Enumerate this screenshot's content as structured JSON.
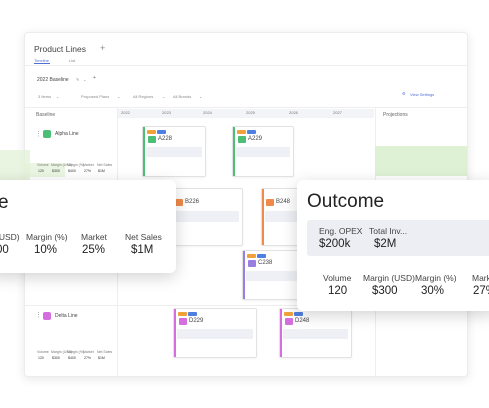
{
  "app": {
    "title": "Product Lines",
    "add_glyph": "+",
    "tabs": [
      "Timeline",
      "List"
    ],
    "scenario": "2022 Baseline",
    "scenario_edit_icon": "pencil-icon",
    "scenario_menu_icon": "chevron-down-icon",
    "scenario_add_glyph": "+"
  },
  "filters": {
    "items_count": "3 Items",
    "plans": "Proposed Plans",
    "regions": "All Regions",
    "brands": "All Brands",
    "view_settings": "View Settings"
  },
  "columns": {
    "baseline": "Baseline",
    "projections": "Projections",
    "years": [
      "2022",
      "2023",
      "2024",
      "2025",
      "2026",
      "2027"
    ]
  },
  "lines": [
    {
      "name": "Alpha Line",
      "color": "#4cbf74",
      "icon": "product-line-icon"
    },
    {
      "name": "Delta Line",
      "color": "#d56fe0",
      "icon": "product-line-icon"
    }
  ],
  "metric_labels": [
    "Volume",
    "Margin (USD)",
    "Margin (%)",
    "Market",
    "Net Sales"
  ],
  "alpha_baseline_values": [
    "120",
    "$300",
    "$400",
    "27%",
    "$1M"
  ],
  "delta_baseline_values": [
    "120",
    "$300",
    "$400",
    "27%",
    "$1M"
  ],
  "cards": {
    "a1": {
      "code": "A228",
      "badge_color": "#f0a13a",
      "icon_color": "#4cbf74"
    },
    "a2": {
      "code": "A229",
      "badge_color": "#f0a13a",
      "icon_color": "#4cbf74"
    },
    "b1": {
      "code": "B226",
      "badge_color": "#f0a13a",
      "icon_color": "#f08a4b"
    },
    "b2": {
      "code": "B248",
      "badge_color": "#f0a13a",
      "icon_color": "#f08a4b"
    },
    "c1": {
      "code": "C238",
      "badge_color": "#f0a13a",
      "icon_color": "#9a7fe0"
    },
    "d1": {
      "code": "D229",
      "badge_color": "#f0a13a",
      "icon_color": "#d56fe0"
    },
    "d2": {
      "code": "D248",
      "badge_color": "#f0a13a",
      "icon_color": "#d56fe0"
    }
  },
  "left_popup": {
    "title": "e",
    "labels": [
      "(USD)",
      "Margin (%)",
      "Market",
      "Net Sales"
    ],
    "values": [
      "00",
      "10%",
      "25%",
      "$1M"
    ]
  },
  "outcome_popup": {
    "title": "Outcome",
    "top_labels": [
      "Eng. OPEX",
      "Total Inv..."
    ],
    "top_values": [
      "$200k",
      "$2M"
    ],
    "labels": [
      "Volume",
      "Margin (USD)",
      "Margin (%)",
      "Mark"
    ],
    "values": [
      "120",
      "$300",
      "30%",
      "27%"
    ]
  },
  "colors": {
    "accent": "#4f6fd8",
    "green_band": "#dcefcf",
    "badge_blue": "#4f7fe0",
    "badge_green": "#6ccf6c"
  }
}
